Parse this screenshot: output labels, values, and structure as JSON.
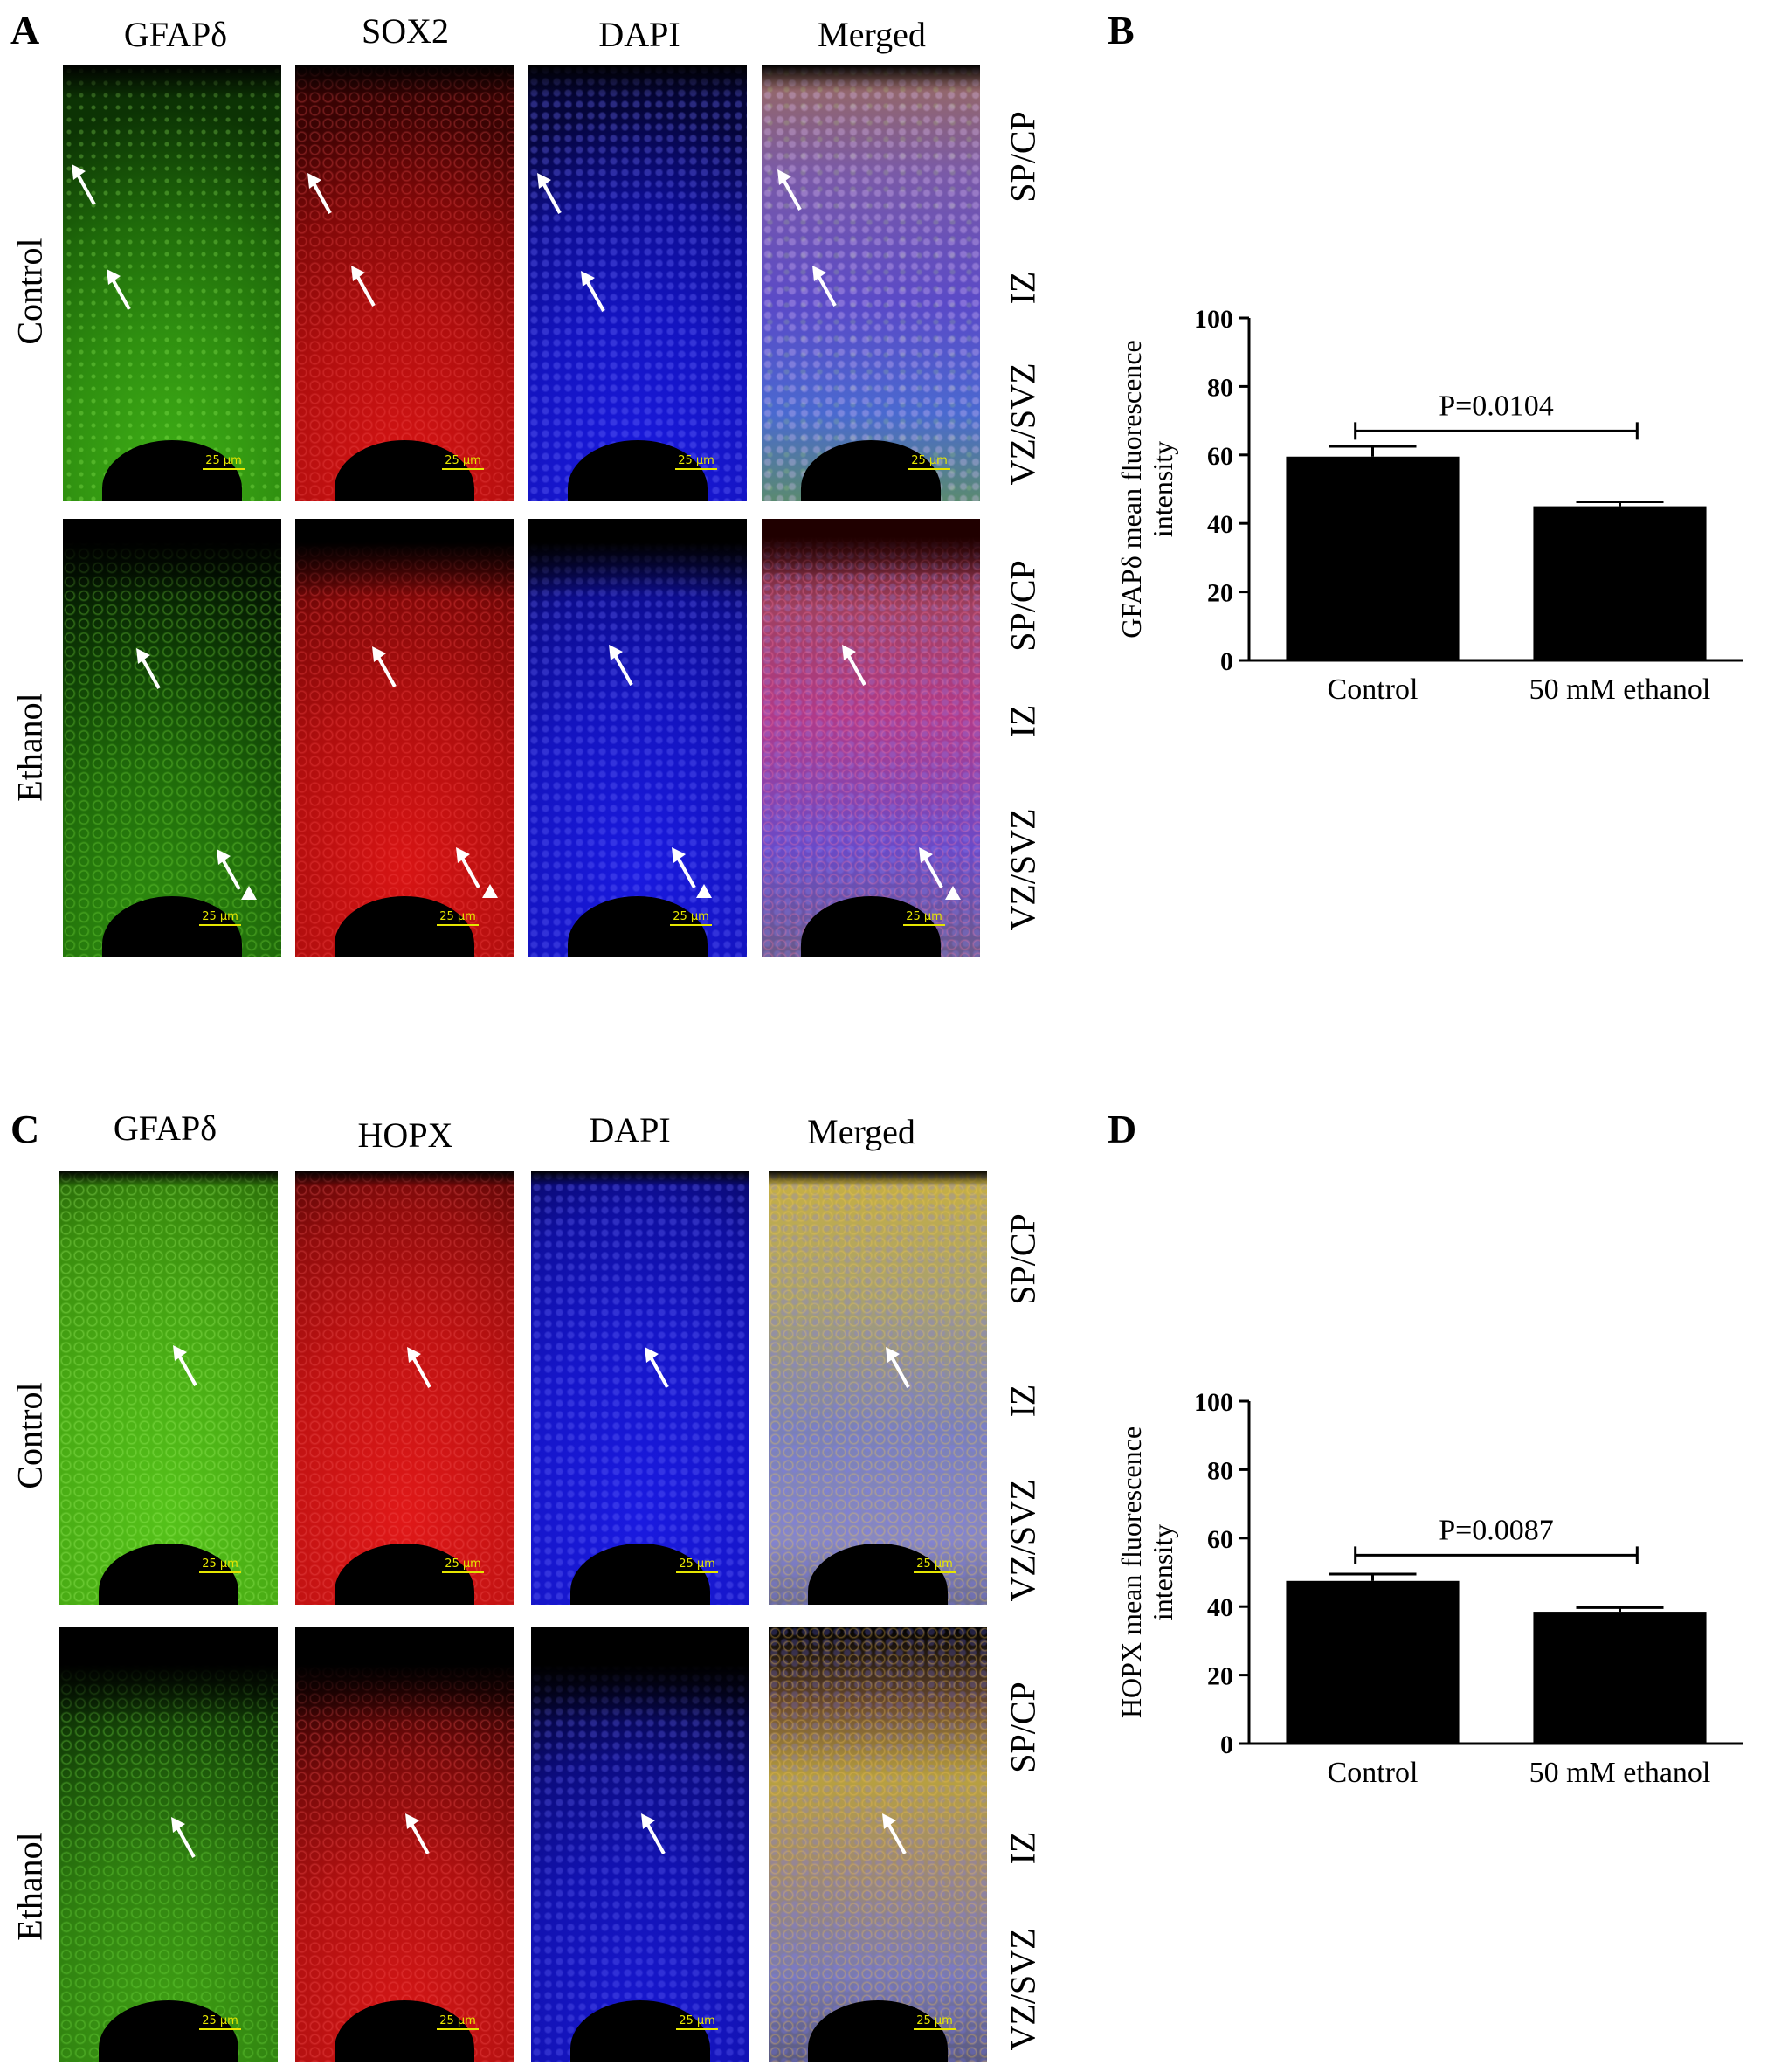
{
  "panels": {
    "A": {
      "letter": "A",
      "columns": [
        "GFAPδ",
        "SOX2",
        "DAPI",
        "Merged"
      ],
      "rows": [
        "Control",
        "Ethanol"
      ],
      "zones": [
        "SP/CP",
        "IZ",
        "VZ/SVZ"
      ],
      "scale": "25 µm"
    },
    "B": {
      "letter": "B"
    },
    "C": {
      "letter": "C",
      "columns": [
        "GFAPδ",
        "HOPX",
        "DAPI",
        "Merged"
      ],
      "rows": [
        "Control",
        "Ethanol"
      ],
      "zones": [
        "SP/CP",
        "IZ",
        "VZ/SVZ"
      ],
      "scale": "25 µm"
    },
    "D": {
      "letter": "D"
    }
  },
  "chart_data": [
    {
      "type": "bar",
      "panel": "B",
      "categories": [
        "Control",
        "50 mM ethanol"
      ],
      "values": [
        59.5,
        45.0
      ],
      "errors": [
        3.0,
        1.3
      ],
      "ylabel": "GFAPδ mean fluorescence intensity",
      "yticks": [
        0,
        20,
        40,
        60,
        80,
        100
      ],
      "ylim": [
        0,
        100
      ],
      "annotation": "P=0.0104",
      "bracket_y": 67,
      "bar_color": "#000000",
      "grid": false
    },
    {
      "type": "bar",
      "panel": "D",
      "categories": [
        "Control",
        "50 mM ethanol"
      ],
      "values": [
        47.5,
        38.5
      ],
      "errors": [
        2.0,
        1.2
      ],
      "ylabel": "HOPX mean fluorescence intensity",
      "yticks": [
        0,
        20,
        40,
        60,
        80,
        100
      ],
      "ylim": [
        0,
        100
      ],
      "annotation": "P=0.0087",
      "bracket_y": 55,
      "bar_color": "#000000",
      "grid": false
    }
  ],
  "channel_colors": {
    "green": "#55c21a",
    "red": "#e01818",
    "blue": "#1a1ae0"
  }
}
